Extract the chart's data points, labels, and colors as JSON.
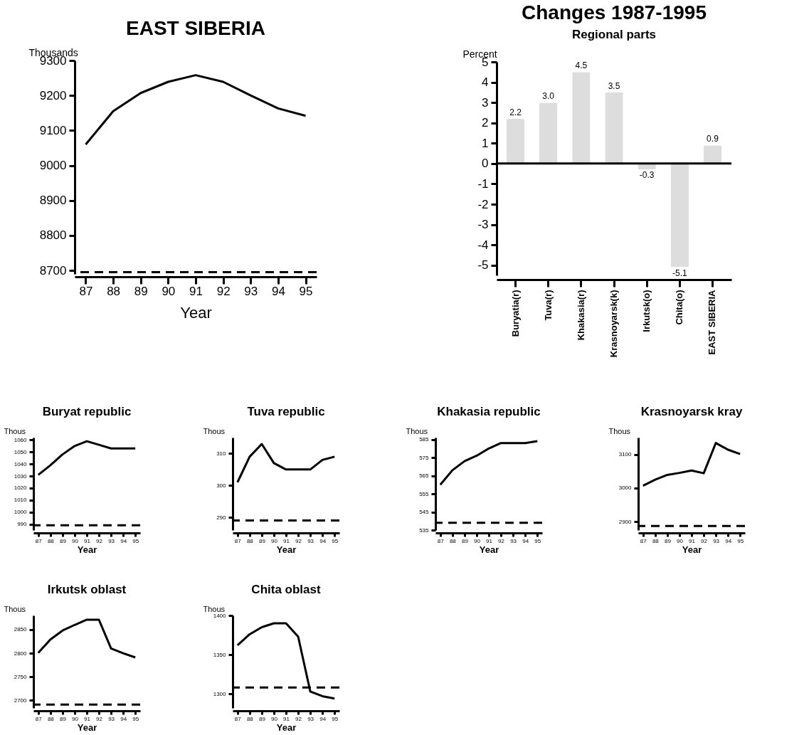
{
  "chart_data": [
    {
      "type": "line",
      "title": "EAST SIBERIA",
      "xlabel": "Year",
      "ylabel": "Thousands",
      "x": [
        87,
        88,
        89,
        90,
        91,
        92,
        93,
        94,
        95
      ],
      "values": [
        9060,
        9155,
        9207,
        9239,
        9258,
        9239,
        9200,
        9163,
        9142
      ],
      "color": "#000000",
      "xlim": [
        86.6,
        95.4
      ],
      "xticks": [
        87,
        88,
        89,
        90,
        91,
        92,
        93,
        94,
        95
      ],
      "ylim": [
        8690,
        9300
      ],
      "yticks": [
        8700,
        8800,
        8900,
        9000,
        9100,
        9200,
        9300
      ],
      "ref_lines": [
        {
          "axis": "y",
          "value": 8695,
          "line_style": "dashed"
        }
      ]
    },
    {
      "type": "bar",
      "title": "Changes 1987-1995",
      "subtitle": "Regional parts",
      "ylabel": "Percent",
      "categories": [
        "Buryatia(r)",
        "Tuva(r)",
        "Khakasia(r)",
        "Krasnoyarsk(k)",
        "Irkutsk(o)",
        "Chita(o)",
        "EAST SIBERIA"
      ],
      "values": [
        2.2,
        3.0,
        4.5,
        3.5,
        -0.3,
        -5.1,
        0.9
      ],
      "value_labels": [
        "2.2",
        "3.0",
        "4.5",
        "3.5",
        "-0.3",
        "-5.1",
        "0.9"
      ],
      "color": "#dddddd",
      "ylim": [
        -5.5,
        5
      ],
      "yticks": [
        -5,
        -4,
        -3,
        -2,
        -1,
        0,
        1,
        2,
        3,
        4,
        5
      ],
      "ref_lines": [
        {
          "axis": "y",
          "value": 0
        }
      ]
    },
    {
      "type": "line",
      "title": "Buryat republic",
      "xlabel": "Year",
      "ylabel": "Thous",
      "x": [
        87,
        88,
        89,
        90,
        91,
        92,
        93,
        94,
        95
      ],
      "values": [
        1031,
        1039,
        1048,
        1055,
        1059,
        1056,
        1053,
        1053,
        1053
      ],
      "color": "#000000",
      "xlim": [
        86.6,
        95.4
      ],
      "xticks": [
        87,
        88,
        89,
        90,
        91,
        92,
        93,
        94,
        95
      ],
      "ylim": [
        985,
        1062
      ],
      "yticks": [
        990,
        1000,
        1010,
        1020,
        1030,
        1040,
        1050,
        1060
      ],
      "ref_lines": [
        {
          "axis": "y",
          "value": 989,
          "line_style": "dashed"
        }
      ]
    },
    {
      "type": "line",
      "title": "Tuva republic",
      "xlabel": "Year",
      "ylabel": "Thous",
      "x": [
        87,
        88,
        89,
        90,
        91,
        92,
        93,
        94,
        95
      ],
      "values": [
        301,
        309,
        313,
        307,
        305,
        305,
        305,
        308,
        309
      ],
      "color": "#000000",
      "xlim": [
        86.6,
        95.4
      ],
      "xticks": [
        87,
        88,
        89,
        90,
        91,
        92,
        93,
        94,
        95
      ],
      "ylim": [
        286,
        315
      ],
      "yticks": [
        290,
        300,
        310
      ],
      "ref_lines": [
        {
          "axis": "y",
          "value": 289,
          "line_style": "dashed"
        }
      ]
    },
    {
      "type": "line",
      "title": "Khakasia republic",
      "xlabel": "Year",
      "ylabel": "Thous",
      "x": [
        87,
        88,
        89,
        90,
        91,
        92,
        93,
        94,
        95
      ],
      "values": [
        560,
        568,
        573,
        576,
        580,
        583,
        583,
        583,
        584
      ],
      "color": "#000000",
      "xlim": [
        86.6,
        95.4
      ],
      "xticks": [
        87,
        88,
        89,
        90,
        91,
        92,
        93,
        94,
        95
      ],
      "ylim": [
        535,
        586
      ],
      "yticks": [
        535,
        545,
        555,
        565,
        575,
        585
      ],
      "ref_lines": [
        {
          "axis": "y",
          "value": 539,
          "line_style": "dashed"
        }
      ]
    },
    {
      "type": "line",
      "title": "Krasnoyarsk kray",
      "xlabel": "Year",
      "ylabel": "Thous",
      "x": [
        87,
        88,
        89,
        90,
        91,
        92,
        93,
        94,
        95
      ],
      "values": [
        3007,
        3025,
        3039,
        3045,
        3052,
        3044,
        3134,
        3114,
        3101
      ],
      "color": "#000000",
      "xlim": [
        86.6,
        95.4
      ],
      "xticks": [
        87,
        88,
        89,
        90,
        91,
        92,
        93,
        94,
        95
      ],
      "ylim": [
        2875,
        3150
      ],
      "yticks": [
        2900,
        3000,
        3100
      ],
      "ref_lines": [
        {
          "axis": "y",
          "value": 2887,
          "line_style": "dashed"
        }
      ]
    },
    {
      "type": "line",
      "title": "Irkutsk oblast",
      "xlabel": "Year",
      "ylabel": "Thous",
      "x": [
        87,
        88,
        89,
        90,
        91,
        92,
        93,
        94,
        95
      ],
      "values": [
        2801,
        2829,
        2848,
        2860,
        2871,
        2871,
        2810,
        2800,
        2791
      ],
      "color": "#000000",
      "xlim": [
        86.6,
        95.4
      ],
      "xticks": [
        87,
        88,
        89,
        90,
        91,
        92,
        93,
        94,
        95
      ],
      "ylim": [
        2684,
        2880
      ],
      "yticks": [
        2700,
        2750,
        2800,
        2850
      ],
      "ref_lines": [
        {
          "axis": "y",
          "value": 2691,
          "line_style": "dashed"
        }
      ]
    },
    {
      "type": "line",
      "title": "Chita oblast",
      "xlabel": "Year",
      "ylabel": "Thous",
      "x": [
        87,
        88,
        89,
        90,
        91,
        92,
        93,
        94,
        95
      ],
      "values": [
        1362,
        1376,
        1385,
        1390,
        1390,
        1373,
        1303,
        1297,
        1294
      ],
      "color": "#000000",
      "xlim": [
        86.6,
        95.4
      ],
      "xticks": [
        87,
        88,
        89,
        90,
        91,
        92,
        93,
        94,
        95
      ],
      "ylim": [
        1282,
        1400
      ],
      "yticks": [
        1300,
        1350,
        1400
      ],
      "ref_lines": [
        {
          "axis": "y",
          "value": 1308,
          "line_style": "dashed"
        }
      ]
    }
  ]
}
